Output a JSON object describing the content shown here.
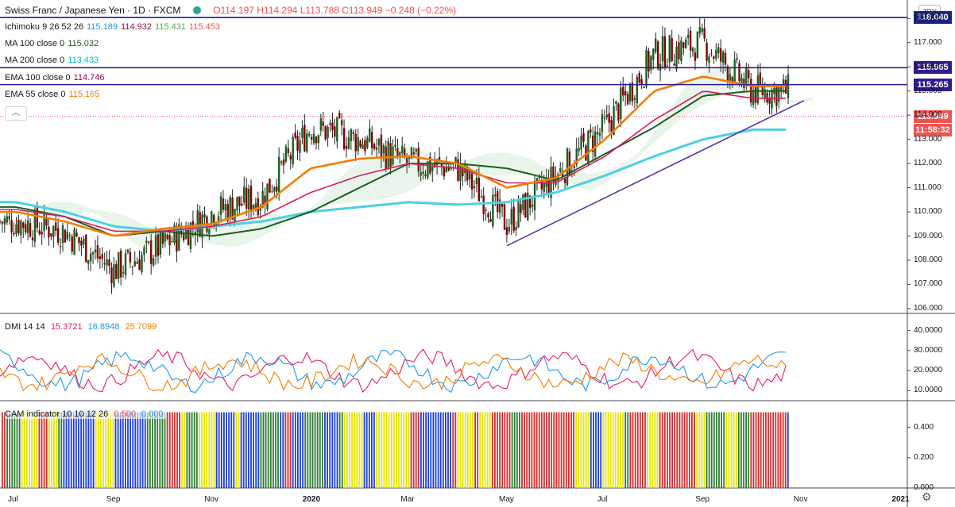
{
  "header": {
    "symbol": "Swiss Franc / Japanese Yen · 1D · FXCM",
    "ohlc": "O114.197 H114.294 L113.788 C113.949 −0.248 (−0.22%)"
  },
  "indicators": [
    {
      "label": "Ichimoku 9 26 52 26",
      "values": [
        {
          "v": "115.189",
          "color": "#2196f3"
        },
        {
          "v": "114.932",
          "color": "#880e4f"
        },
        {
          "v": "115.431",
          "color": "#4caf50"
        },
        {
          "v": "115.453",
          "color": "#ef5350"
        }
      ]
    },
    {
      "label": "MA 100 close 0",
      "values": [
        {
          "v": "115.032",
          "color": "#1b5e20"
        }
      ]
    },
    {
      "label": "MA 200 close 0",
      "values": [
        {
          "v": "113.433",
          "color": "#00bcd4"
        }
      ]
    },
    {
      "label": "EMA 100 close 0",
      "values": [
        {
          "v": "114.746",
          "color": "#880e4f"
        }
      ]
    },
    {
      "label": "EMA 55 close 0",
      "values": [
        {
          "v": "115.165",
          "color": "#f57c00"
        }
      ]
    }
  ],
  "dmi": {
    "label": "DMI 14 14",
    "plus": "15.3721",
    "minus": "16.8948",
    "adx": "25.7099"
  },
  "cam": {
    "label": "CAM indicator 10 10 12 26",
    "v1": "0.500",
    "v2": "0.000"
  },
  "currency_button": "JPY",
  "price_tags": [
    {
      "value": "118.040",
      "color": "#1a237e"
    },
    {
      "value": "115.965",
      "color": "#311b92"
    },
    {
      "value": "115.265",
      "color": "#311b92"
    },
    {
      "value": "113.949",
      "color": "#ef5350"
    },
    {
      "value": "11:58:32",
      "color": "#ef5350"
    }
  ],
  "chart_data": {
    "type": "candlestick",
    "price_axis": {
      "ticks": [
        "118.000",
        "117.000",
        "116.000",
        "115.000",
        "114.000",
        "113.000",
        "112.000",
        "111.000",
        "110.000",
        "109.000",
        "108.000",
        "107.000",
        "106.000"
      ],
      "ylim": [
        105.8,
        118.6
      ]
    },
    "time_axis": {
      "ticks": [
        "Jul",
        "Sep",
        "Nov",
        "2020",
        "Mar",
        "May",
        "Jul",
        "Sep",
        "Nov",
        "2021"
      ]
    },
    "horizontal_lines": [
      118.04,
      115.965,
      115.265
    ],
    "trendline": {
      "from": [
        "2020-05-01",
        108.6
      ],
      "to": [
        "2020-11-03",
        114.6
      ]
    },
    "close_series": {
      "x": [
        "2019-07",
        "2019-08",
        "2019-09",
        "2019-10",
        "2019-11",
        "2019-12",
        "2020-01",
        "2020-02",
        "2020-03",
        "2020-04",
        "2020-05",
        "2020-06",
        "2020-07",
        "2020-08",
        "2020-09",
        "2020-10"
      ],
      "close": [
        109.6,
        109.2,
        107.6,
        108.6,
        110.0,
        110.6,
        113.5,
        113.0,
        112.0,
        111.8,
        109.5,
        111.5,
        113.5,
        116.5,
        117.0,
        115.0
      ]
    },
    "ma200": [
      110.4,
      110.0,
      109.4,
      109.2,
      109.4,
      109.6,
      110.0,
      110.2,
      110.4,
      110.3,
      110.4,
      110.8,
      111.5,
      112.3,
      113.0,
      113.4
    ],
    "ma100": [
      110.2,
      109.8,
      109.0,
      109.2,
      109.0,
      109.3,
      110.0,
      111.0,
      112.0,
      112.0,
      111.8,
      111.3,
      112.4,
      113.5,
      114.8,
      115.0
    ],
    "ema55": [
      110.0,
      109.6,
      109.0,
      109.3,
      109.5,
      110.2,
      111.8,
      112.2,
      112.3,
      112.0,
      111.0,
      111.4,
      113.0,
      115.0,
      115.6,
      115.2
    ],
    "ema100": [
      110.1,
      109.8,
      109.2,
      109.2,
      109.4,
      109.8,
      110.8,
      111.5,
      112.0,
      111.8,
      111.2,
      111.2,
      112.3,
      113.8,
      115.0,
      114.7
    ],
    "dmi": {
      "ylim": [
        5,
        45
      ],
      "ticks": [
        "40.0000",
        "30.0000",
        "20.0000",
        "10.0000"
      ],
      "plus_last": 15.3721,
      "minus_last": 16.8948,
      "adx_last": 25.7099
    },
    "cam": {
      "ticks": [
        "0.400",
        "0.200",
        "0.000"
      ],
      "colors": [
        "#e6e600",
        "#2e7d32",
        "#d32f2f",
        "#1e40d8"
      ]
    }
  }
}
